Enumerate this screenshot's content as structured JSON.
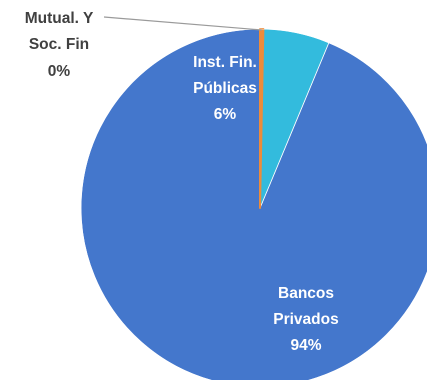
{
  "chart_data": {
    "type": "pie",
    "title": "",
    "slices": [
      {
        "name": "Bancos Privados",
        "label_lines": [
          "Bancos",
          "Privados"
        ],
        "percent_label": "94%",
        "value": 94,
        "color": "#4477CC"
      },
      {
        "name": "Inst. Fin. Públicas",
        "label_lines": [
          "Inst. Fin.",
          "Públicas"
        ],
        "percent_label": "6%",
        "value": 6,
        "color": "#33BBDD"
      },
      {
        "name": "Mutual. Y Soc. Fin",
        "label_lines": [
          "Mutual. Y",
          "Soc. Fin"
        ],
        "percent_label": "0%",
        "value": 0.3,
        "color": "#ED8B3A"
      }
    ],
    "start_angle_deg": 0,
    "direction": "counterclockwise",
    "legend": "none",
    "outer_label_slice": "Mutual. Y Soc. Fin"
  }
}
